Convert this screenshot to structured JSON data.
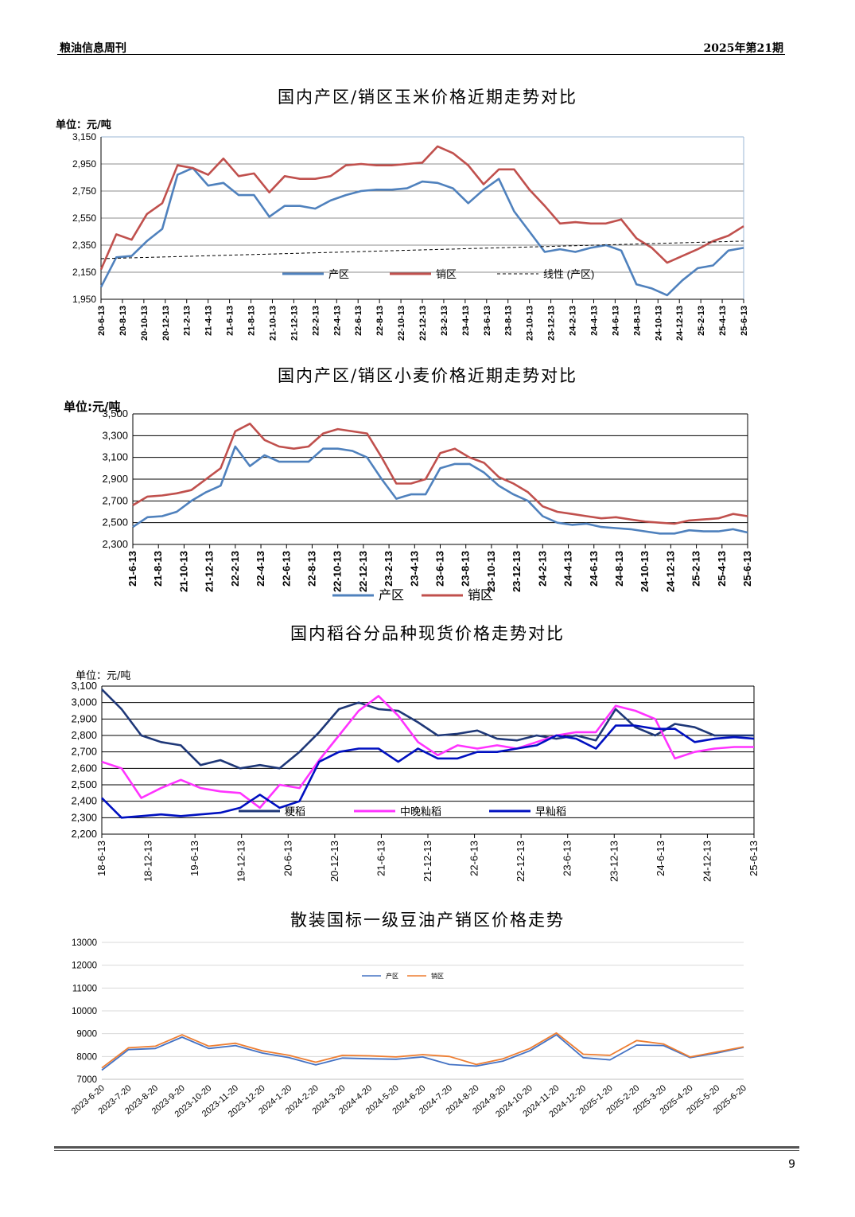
{
  "header": {
    "left": "粮油信息周刊",
    "right": "2025年第21期"
  },
  "page_number": "9",
  "chart_data": [
    {
      "id": "corn",
      "type": "line",
      "title": "国内产区/销区玉米价格近期走势对比",
      "unit": "单位：元/吨",
      "yticks": [
        "3,150",
        "2,950",
        "2,750",
        "2,550",
        "2,350",
        "2,150",
        "1,950"
      ],
      "ylim": [
        1950,
        3150
      ],
      "x_labels": [
        "20-6-13",
        "20-8-13",
        "20-10-13",
        "20-12-13",
        "21-2-13",
        "21-4-13",
        "21-6-13",
        "21-8-13",
        "21-10-13",
        "21-12-13",
        "22-2-13",
        "22-4-13",
        "22-6-13",
        "22-8-13",
        "22-10-13",
        "22-12-13",
        "23-2-13",
        "23-4-13",
        "23-6-13",
        "23-8-13",
        "23-10-13",
        "23-12-13",
        "24-2-13",
        "24-4-13",
        "24-6-13",
        "24-8-13",
        "24-10-13",
        "24-12-13",
        "25-2-13",
        "25-4-13",
        "25-6-13"
      ],
      "legend": [
        "产区",
        "销区",
        "线性 (产区)"
      ],
      "series": [
        {
          "name": "产区",
          "color": "#4f81bd",
          "values": [
            2040,
            2260,
            2270,
            2380,
            2470,
            2870,
            2920,
            2790,
            2810,
            2720,
            2720,
            2560,
            2640,
            2640,
            2620,
            2680,
            2720,
            2750,
            2760,
            2760,
            2770,
            2820,
            2810,
            2770,
            2660,
            2760,
            2840,
            2600,
            2450,
            2300,
            2320,
            2300,
            2330,
            2350,
            2310,
            2060,
            2030,
            1980,
            2090,
            2180,
            2200,
            2310,
            2330
          ]
        },
        {
          "name": "销区",
          "color": "#c0504d",
          "values": [
            2170,
            2430,
            2390,
            2580,
            2660,
            2940,
            2920,
            2870,
            2990,
            2860,
            2880,
            2740,
            2860,
            2840,
            2840,
            2860,
            2940,
            2950,
            2940,
            2940,
            2950,
            2960,
            3080,
            3030,
            2940,
            2800,
            2910,
            2910,
            2760,
            2640,
            2510,
            2520,
            2510,
            2510,
            2540,
            2400,
            2330,
            2220,
            2270,
            2320,
            2380,
            2420,
            2490
          ]
        },
        {
          "name": "线性 (产区)",
          "color": "#000000",
          "dashed": true,
          "values": [
            2250,
            2380
          ]
        }
      ]
    },
    {
      "id": "wheat",
      "type": "line",
      "title": "国内产区/销区小麦价格近期走势对比",
      "unit": "单位:元/吨",
      "yticks": [
        "3,500",
        "3,300",
        "3,100",
        "2,900",
        "2,700",
        "2,500",
        "2,300"
      ],
      "ylim": [
        2300,
        3500
      ],
      "x_labels": [
        "21-6-13",
        "21-8-13",
        "21-10-13",
        "21-12-13",
        "22-2-13",
        "22-4-13",
        "22-6-13",
        "22-8-13",
        "22-10-13",
        "22-12-13",
        "23-2-13",
        "23-4-13",
        "23-6-13",
        "23-8-13",
        "23-10-13",
        "23-12-13",
        "24-2-13",
        "24-4-13",
        "24-6-13",
        "24-8-13",
        "24-10-13",
        "24-12-13",
        "25-2-13",
        "25-4-13",
        "25-6-13"
      ],
      "legend": [
        "产区",
        "销区"
      ],
      "series": [
        {
          "name": "产区",
          "color": "#4f81bd",
          "values": [
            2460,
            2550,
            2560,
            2600,
            2700,
            2780,
            2840,
            3200,
            3020,
            3120,
            3060,
            3060,
            3060,
            3180,
            3180,
            3160,
            3100,
            2900,
            2720,
            2760,
            2760,
            3000,
            3040,
            3040,
            2960,
            2840,
            2760,
            2700,
            2560,
            2500,
            2480,
            2490,
            2460,
            2450,
            2440,
            2420,
            2400,
            2400,
            2430,
            2420,
            2420,
            2440,
            2410
          ]
        },
        {
          "name": "销区",
          "color": "#c0504d",
          "values": [
            2660,
            2740,
            2750,
            2770,
            2800,
            2900,
            3000,
            3340,
            3410,
            3260,
            3200,
            3180,
            3200,
            3320,
            3360,
            3340,
            3320,
            3100,
            2860,
            2860,
            2900,
            3140,
            3180,
            3100,
            3050,
            2920,
            2860,
            2780,
            2650,
            2600,
            2580,
            2560,
            2540,
            2550,
            2530,
            2510,
            2500,
            2490,
            2520,
            2530,
            2540,
            2580,
            2560
          ]
        }
      ]
    },
    {
      "id": "rice",
      "type": "line",
      "title": "国内稻谷分品种现货价格走势对比",
      "unit": "单位：元/吨",
      "yticks": [
        "3,100",
        "3,000",
        "2,900",
        "2,800",
        "2,700",
        "2,600",
        "2,500",
        "2,400",
        "2,300",
        "2,200"
      ],
      "ylim": [
        2200,
        3100
      ],
      "x_labels": [
        "18-6-13",
        "18-12-13",
        "19-6-13",
        "19-12-13",
        "20-6-13",
        "20-12-13",
        "21-6-13",
        "21-12-13",
        "22-6-13",
        "22-12-13",
        "23-6-13",
        "23-12-13",
        "24-6-13",
        "24-12-13",
        "25-6-13"
      ],
      "legend": [
        "粳稻",
        "中晚籼稻",
        "早籼稻"
      ],
      "series": [
        {
          "name": "粳稻",
          "color": "#1f3878",
          "values": [
            3080,
            2960,
            2800,
            2760,
            2740,
            2620,
            2650,
            2600,
            2620,
            2600,
            2700,
            2820,
            2960,
            3000,
            2960,
            2950,
            2880,
            2800,
            2810,
            2830,
            2780,
            2770,
            2800,
            2780,
            2800,
            2770,
            2960,
            2850,
            2800,
            2870,
            2850,
            2800,
            2800,
            2800
          ]
        },
        {
          "name": "中晚籼稻",
          "color": "#ff33ff",
          "values": [
            2640,
            2600,
            2420,
            2480,
            2530,
            2480,
            2460,
            2450,
            2360,
            2500,
            2480,
            2650,
            2800,
            2950,
            3040,
            2920,
            2760,
            2680,
            2740,
            2720,
            2740,
            2720,
            2760,
            2800,
            2820,
            2820,
            2980,
            2950,
            2900,
            2660,
            2700,
            2720,
            2730,
            2730
          ]
        },
        {
          "name": "早籼稻",
          "color": "#0010c0",
          "values": [
            2420,
            2300,
            2310,
            2320,
            2310,
            2320,
            2330,
            2360,
            2440,
            2360,
            2400,
            2640,
            2700,
            2720,
            2720,
            2640,
            2720,
            2660,
            2660,
            2700,
            2700,
            2720,
            2740,
            2800,
            2780,
            2720,
            2860,
            2860,
            2840,
            2840,
            2760,
            2780,
            2790,
            2780
          ]
        }
      ]
    },
    {
      "id": "soyoil",
      "type": "line",
      "title": "散装国标一级豆油产销区价格走势",
      "unit": "",
      "yticks": [
        "13000",
        "12000",
        "11000",
        "10000",
        "9000",
        "8000",
        "7000"
      ],
      "ylim": [
        7000,
        13000
      ],
      "x_labels": [
        "2023-6-20",
        "2023-7-20",
        "2023-8-20",
        "2023-9-20",
        "2023-10-20",
        "2023-11-20",
        "2023-12-20",
        "2024-1-20",
        "2024-2-20",
        "2024-3-20",
        "2024-4-20",
        "2024-5-20",
        "2024-6-20",
        "2024-7-20",
        "2024-8-20",
        "2024-9-20",
        "2024-10-20",
        "2024-11-20",
        "2024-12-20",
        "2025-1-20",
        "2025-2-20",
        "2025-3-20",
        "2025-4-20",
        "2025-5-20",
        "2025-6-20"
      ],
      "legend": [
        "产区",
        "销区"
      ],
      "series": [
        {
          "name": "产区",
          "color": "#4472c4",
          "values": [
            7400,
            8300,
            8350,
            8850,
            8350,
            8480,
            8150,
            7950,
            7630,
            7930,
            7900,
            7880,
            7980,
            7650,
            7580,
            7800,
            8250,
            8950,
            7950,
            7850,
            8500,
            8480,
            7950,
            8150,
            8400
          ]
        },
        {
          "name": "销区",
          "color": "#ed7d31",
          "values": [
            7500,
            8380,
            8450,
            8950,
            8450,
            8580,
            8250,
            8050,
            7750,
            8050,
            8030,
            7980,
            8080,
            8000,
            7650,
            7900,
            8350,
            9030,
            8100,
            8050,
            8700,
            8550,
            7980,
            8200,
            8420
          ]
        }
      ]
    }
  ]
}
